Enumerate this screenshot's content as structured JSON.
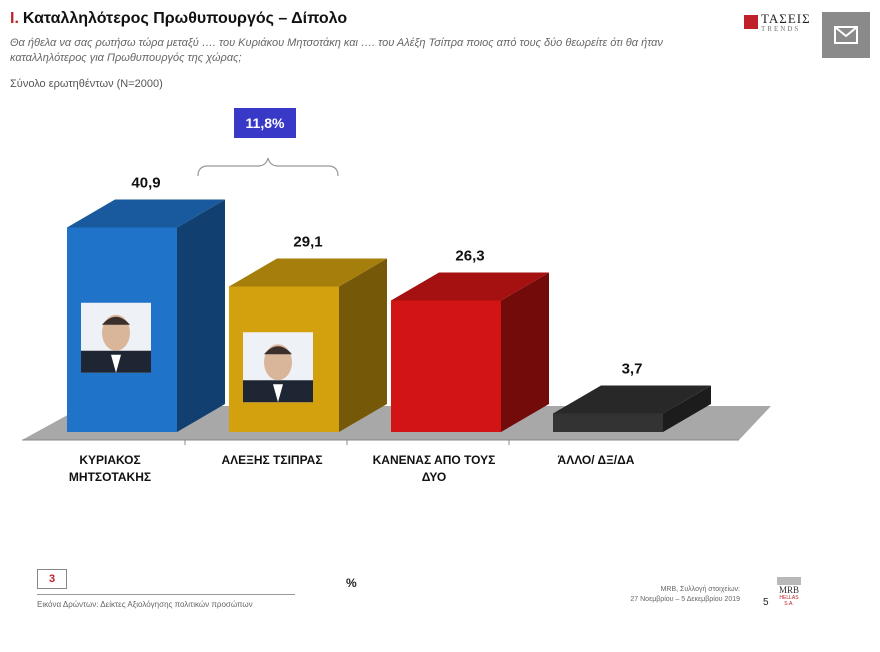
{
  "header": {
    "num": "I.",
    "title": "Καταλληλότερος Πρωθυπουργός – Δίπολο",
    "question": "Θα ήθελα να σας ρωτήσω τώρα μεταξύ …. του Κυριάκου Μητσοτάκη και …. του Αλέξη Τσίπρα ποιος από τους δύο θεωρείτε ότι θα ήταν καταλληλότερος για Πρωθυπουργός της χώρας;",
    "base": "Σύνολο ερωτηθέντων (N=2000)"
  },
  "logo": {
    "line1": "ΤΑΣΕΙΣ",
    "line2": "TRENDS"
  },
  "mail_icon": "mail-icon",
  "difference_label": "11,8%",
  "chart_data": {
    "type": "bar",
    "style": "3d",
    "categories": [
      "ΚΥΡΙΑΚΟΣ ΜΗΤΣΟΤΑΚΗΣ",
      "ΑΛΕΞΗΣ ΤΣΙΠΡΑΣ",
      "ΚΑΝΕΝΑΣ ΑΠΟ ΤΟΥΣ ΔΥΟ",
      "ΆΛΛΟ/ ΔΞ/ΔΑ"
    ],
    "category_lines": [
      [
        "ΚΥΡΙΑΚΟΣ",
        "ΜΗΤΣΟΤΑΚΗΣ"
      ],
      [
        "ΑΛΕΞΗΣ ΤΣΙΠΡΑΣ"
      ],
      [
        "ΚΑΝΕΝΑΣ ΑΠΟ ΤΟΥΣ",
        "ΔΥΟ"
      ],
      [
        "ΆΛΛΟ/ ΔΞ/ΔΑ"
      ]
    ],
    "values": [
      40.9,
      29.1,
      26.3,
      3.7
    ],
    "value_labels": [
      "40,9",
      "29,1",
      "26,3",
      "3,7"
    ],
    "colors": [
      "#1f73c9",
      "#d4a10e",
      "#d31414",
      "#333333"
    ],
    "unit": "%",
    "grid": false,
    "legend": "none"
  },
  "footer": {
    "page_box": "3",
    "text": "Εικόνα Δρώντων: Δείκτες Αξιολόγησης πολιτικών προσώπων",
    "source_line1": "MRB, Συλλογή στοιχείων:",
    "source_line2": "27 Νοεμβρίου – 5 Δεκεμβρίου 2019",
    "page_number": "5",
    "mrb_logo": "MRB",
    "mrb_sub": "HELLAS S.A."
  }
}
